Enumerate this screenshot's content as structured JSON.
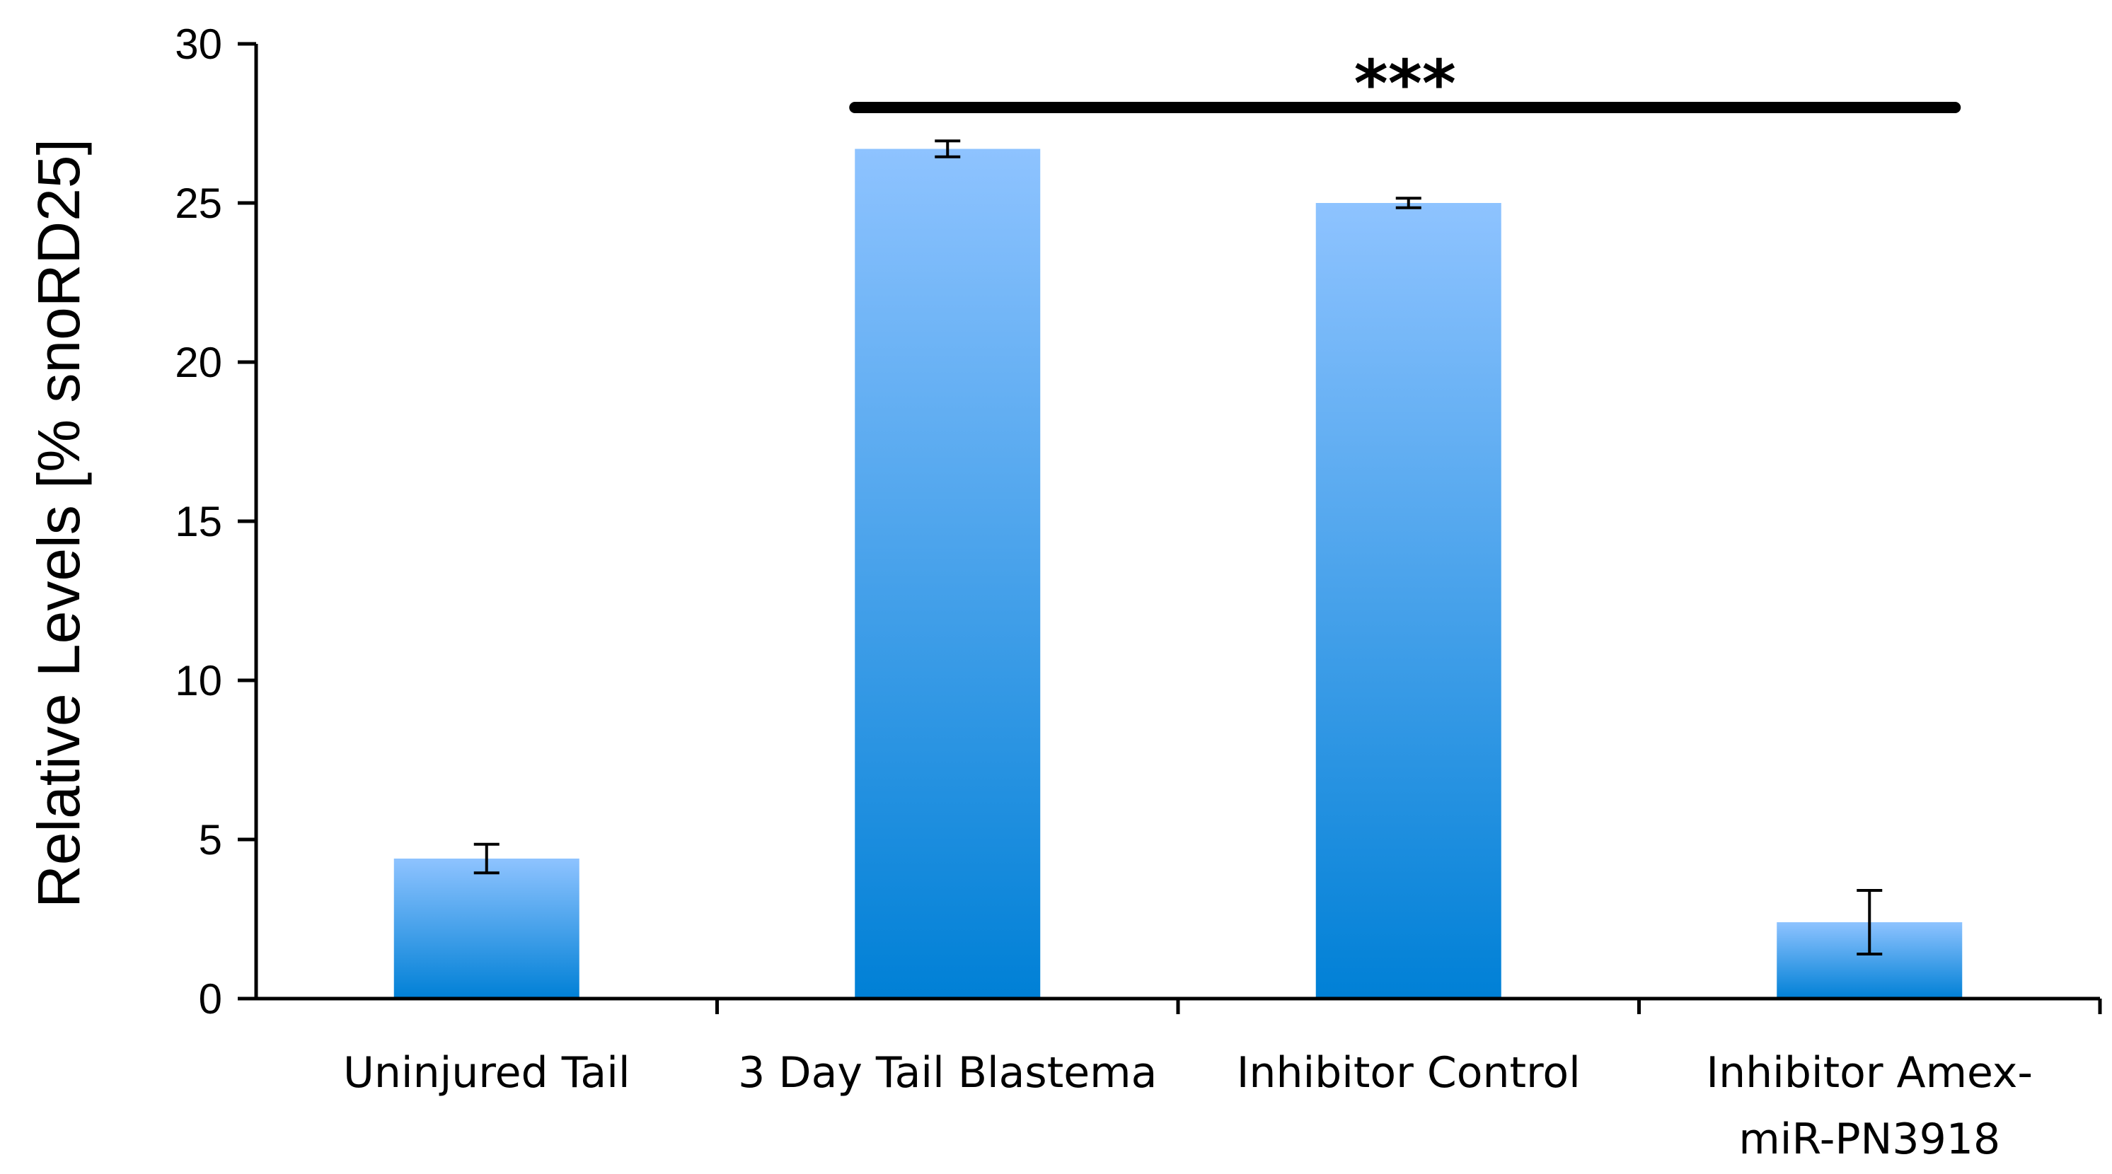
{
  "chart_data": {
    "type": "bar",
    "title": "",
    "xlabel": "",
    "ylabel": "Relative Levels [% snoRD25]",
    "ylim": [
      0,
      30
    ],
    "yticks": [
      0,
      5,
      10,
      15,
      20,
      25,
      30
    ],
    "grid": false,
    "categories": [
      [
        "Uninjured Tail"
      ],
      [
        "3 Day Tail Blastema"
      ],
      [
        "Inhibitor Control"
      ],
      [
        "Inhibitor Amex-",
        "miR-PN3918"
      ]
    ],
    "values": [
      4.4,
      26.7,
      25.0,
      2.4
    ],
    "errors": [
      0.45,
      0.25,
      0.15,
      1.0
    ],
    "significance": {
      "label": "***",
      "from_category": 1,
      "to_category": 3,
      "value": 28.0
    },
    "colors": {
      "bar_top": "#8ec3ff",
      "bar_bottom": "#0080d6",
      "axis": "#000000"
    }
  }
}
